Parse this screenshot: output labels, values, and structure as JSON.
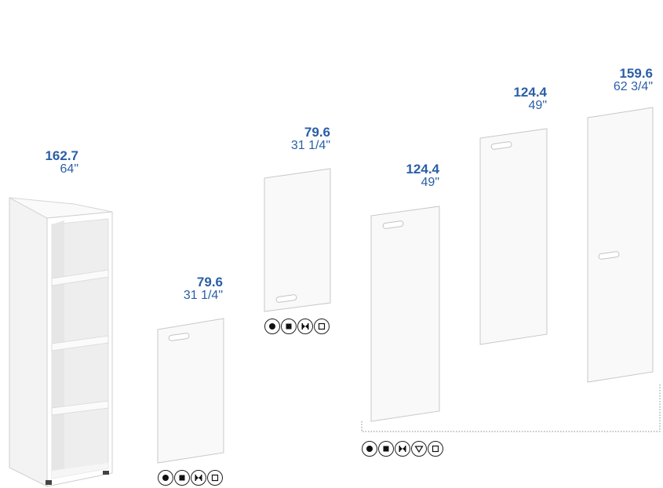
{
  "items": [
    {
      "name": "bookcase",
      "cm": "162.7",
      "inch": "64\""
    },
    {
      "name": "door-low-a",
      "cm": "79.6",
      "inch": "31 1/4\"",
      "finishes": [
        "circle",
        "square",
        "bowtie",
        "outline-square"
      ]
    },
    {
      "name": "door-low-b",
      "cm": "79.6",
      "inch": "31 1/4\"",
      "finishes": [
        "circle",
        "square",
        "bowtie",
        "outline-square"
      ]
    },
    {
      "name": "door-mid-a",
      "cm": "124.4",
      "inch": "49\""
    },
    {
      "name": "door-mid-b",
      "cm": "124.4",
      "inch": "49\""
    },
    {
      "name": "door-tall",
      "cm": "159.6",
      "inch": "62 3/4\""
    }
  ],
  "group_finishes": [
    "circle",
    "square",
    "bowtie",
    "triangle",
    "outline-square"
  ],
  "colors": {
    "dimension_text": "#2a5ea7",
    "panel": "#f9f9f9",
    "outline": "#c8c8c8"
  }
}
